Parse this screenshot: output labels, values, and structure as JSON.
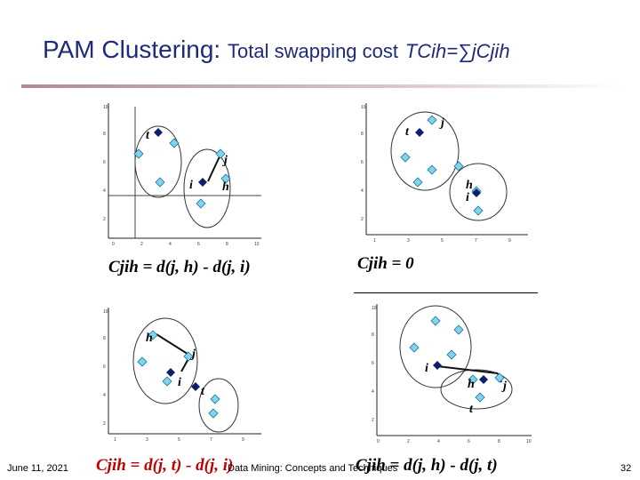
{
  "title": {
    "main": "PAM Clustering:",
    "sub": "Total swapping cost",
    "formula": "TCih=∑jCjih"
  },
  "panels": [
    {
      "formula": "Cjih = d(j, h) - d(j, i)",
      "labels": {
        "t": "t",
        "j": "j",
        "i": "i",
        "h": "h"
      }
    },
    {
      "formula": "Cjih = 0",
      "labels": {
        "t": "t",
        "j": "j",
        "h": "h",
        "i": "i"
      }
    },
    {
      "formula": "Cjih = d(j, t) - d(j, i)",
      "labels": {
        "h": "h",
        "j": "j",
        "i": "i",
        "t": "t"
      }
    },
    {
      "formula": "Cjih = d(j, h) - d(j, t)",
      "labels": {
        "i": "i",
        "h": "h",
        "j": "j",
        "t": "t"
      }
    }
  ],
  "footer": {
    "date": "June 11, 2021",
    "center": "Data Mining: Concepts and Techniques",
    "page": "32"
  },
  "colors": {
    "title": "#1f2a7a",
    "formula": "#c00000",
    "point_fill": "#7fd6ea",
    "point_stroke": "#1a6fa0",
    "medoid": "#0a1f6e"
  }
}
